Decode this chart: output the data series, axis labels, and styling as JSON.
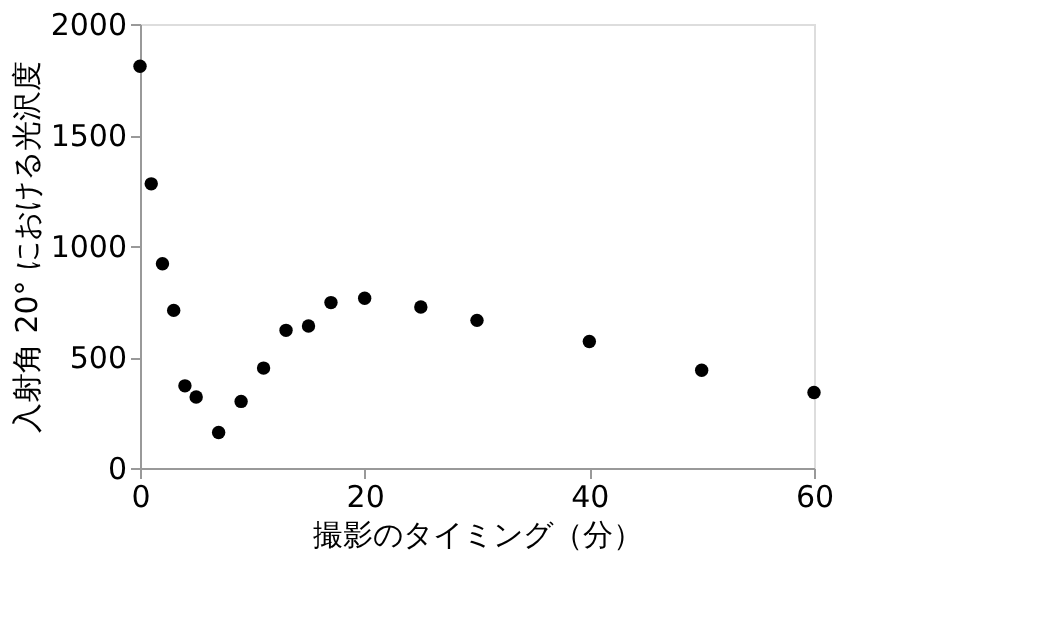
{
  "chart_data": {
    "type": "scatter",
    "xlabel": "撮影のタイミング（分）",
    "ylabel": "入射角 20° における光沢度",
    "x": [
      0,
      1,
      2,
      3,
      4,
      5,
      7,
      9,
      11,
      13,
      15,
      17,
      20,
      25,
      30,
      40,
      50,
      60
    ],
    "series": [
      {
        "color": "#000000",
        "values": [
          1810,
          1280,
          920,
          710,
          370,
          320,
          160,
          300,
          450,
          620,
          640,
          745,
          765,
          725,
          665,
          570,
          440,
          340
        ]
      }
    ],
    "xlim": [
      0,
      60
    ],
    "xticks": [
      0,
      20,
      40,
      60
    ],
    "ylim": [
      0,
      2000
    ],
    "yticks": [
      0,
      500,
      1000,
      1500,
      2000
    ],
    "marker": "circle",
    "grid": false,
    "legend": false
  }
}
